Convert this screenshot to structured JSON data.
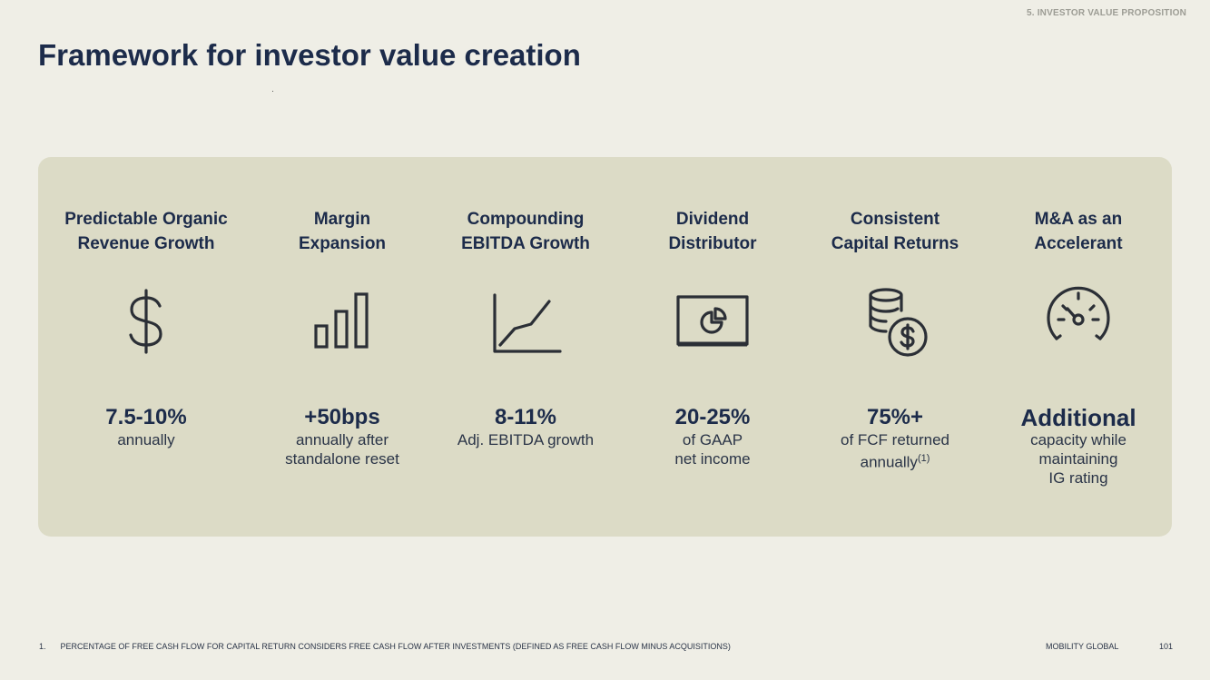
{
  "header": {
    "section_tag": "5. INVESTOR VALUE PROPOSITION",
    "title": "Framework for investor value creation"
  },
  "pillars": [
    {
      "title": "Predictable Organic\nRevenue Growth",
      "icon": "dollar-sign-icon",
      "metric": "7.5-10%",
      "description": "annually"
    },
    {
      "title": "Margin\nExpansion",
      "icon": "bar-chart-icon",
      "metric": "+50bps",
      "description": "annually after\nstandalone reset"
    },
    {
      "title": "Compounding\nEBITDA Growth",
      "icon": "line-chart-icon",
      "metric": "8-11%",
      "description": "Adj. EBITDA growth"
    },
    {
      "title": "Dividend\nDistributor",
      "icon": "pie-chart-screen-icon",
      "metric": "20-25%",
      "description": "of GAAP\nnet income"
    },
    {
      "title": "Consistent\nCapital Returns",
      "icon": "coin-stack-dollar-icon",
      "metric": "75%+",
      "description": "of FCF returned\nannually",
      "description_sup": "(1)"
    },
    {
      "title": "M&A as an\nAccelerant",
      "icon": "speedometer-icon",
      "metric": "Additional",
      "description": "capacity while\nmaintaining\nIG rating"
    }
  ],
  "footer": {
    "footnote_number": "1.",
    "footnote_text": "PERCENTAGE OF FREE CASH FLOW FOR CAPITAL RETURN CONSIDERS FREE CASH FLOW AFTER INVESTMENTS (DEFINED AS FREE CASH FLOW MINUS ACQUISITIONS)",
    "brand": "MOBILITY GLOBAL",
    "page_number": "101"
  },
  "colors": {
    "background": "#efeee6",
    "panel": "#dcdbc6",
    "navy": "#1c2b4a",
    "icon_stroke": "#2b2f36"
  }
}
